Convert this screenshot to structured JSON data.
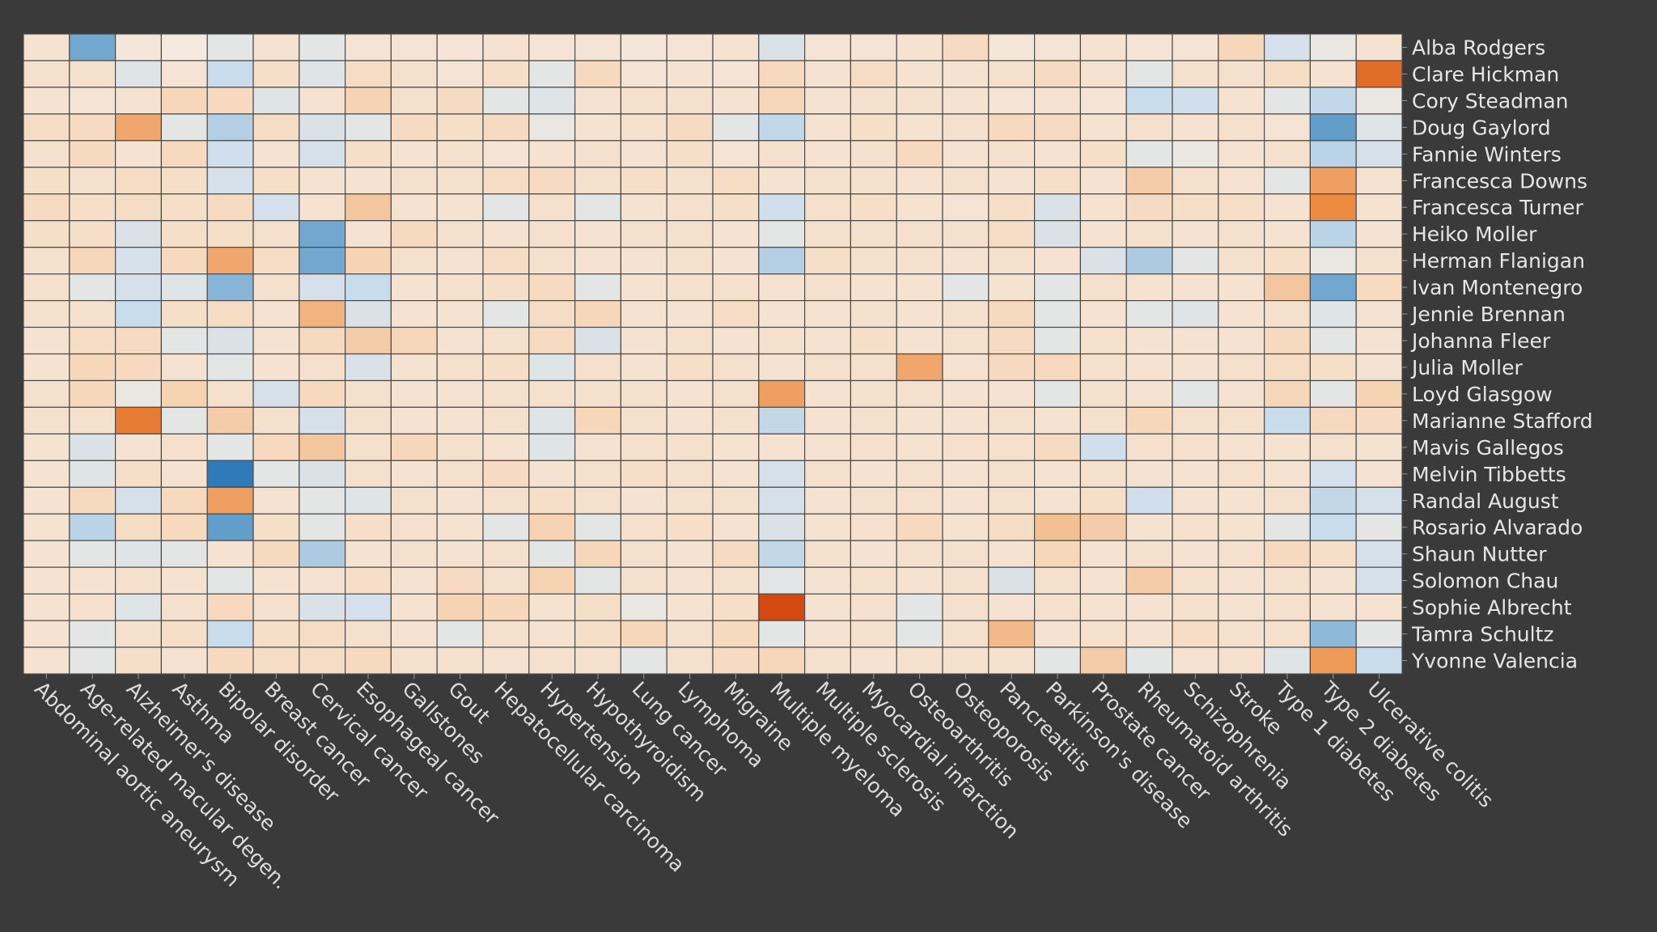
{
  "chart_data": {
    "type": "heatmap",
    "title": "",
    "xlabel": "",
    "ylabel": "",
    "x_categories": [
      "Abdominal aortic aneurysm",
      "Age-related macular degen.",
      "Alzheimer's disease",
      "Asthma",
      "Bipolar disorder",
      "Breast cancer",
      "Cervical cancer",
      "Esophageal cancer",
      "Gallstones",
      "Gout",
      "Hepatocellular carcinoma",
      "Hypertension",
      "Hypothyroidism",
      "Lung cancer",
      "Lymphoma",
      "Migraine",
      "Multiple myeloma",
      "Multiple sclerosis",
      "Myocardial infarction",
      "Osteoarthritis",
      "Osteoporosis",
      "Pancreatitis",
      "Parkinson's disease",
      "Prostate cancer",
      "Rheumatoid arthritis",
      "Schizophrenia",
      "Stroke",
      "Type 1 diabetes",
      "Type 2 diabetes",
      "Ulcerative colitis"
    ],
    "y_categories": [
      "Alba Rodgers",
      "Clare Hickman",
      "Cory Steadman",
      "Doug Gaylord",
      "Fannie Winters",
      "Francesca Downs",
      "Francesca Turner",
      "Heiko Moller",
      "Herman Flanigan",
      "Ivan Montenegro",
      "Jennie Brennan",
      "Johanna Fleer",
      "Julia Moller",
      "Loyd Glasgow",
      "Marianne Stafford",
      "Mavis Gallegos",
      "Melvin Tibbetts",
      "Randal August",
      "Rosario Alvarado",
      "Shaun Nutter",
      "Solomon Chau",
      "Sophie Albrecht",
      "Tamra Schultz",
      "Yvonne Valencia"
    ],
    "value_scale": "diverging: -3 = strong blue, 0 = neutral pale, +3 = strong orange",
    "vlim": [
      -3,
      3
    ],
    "values": [
      [
        0.4,
        -2,
        0.2,
        0,
        -0.3,
        0.4,
        -0.3,
        0.3,
        0.3,
        0.3,
        0.4,
        0.3,
        0.3,
        0.2,
        0.3,
        0.4,
        -0.5,
        0.3,
        0.3,
        0.4,
        0.8,
        0.2,
        0.3,
        0.4,
        0.3,
        0.3,
        1.0,
        -0.6,
        -0.2,
        0.4
      ],
      [
        0.5,
        0.5,
        -0.4,
        0.3,
        -0.8,
        0.6,
        -0.4,
        0.7,
        0.5,
        0.3,
        0.6,
        -0.3,
        0.9,
        0.3,
        0.4,
        0.3,
        0.9,
        0.4,
        0.7,
        0.4,
        0.4,
        0.5,
        0.8,
        0.4,
        -0.3,
        0.5,
        0.5,
        0.7,
        0.4,
        2.6
      ],
      [
        0.4,
        0.3,
        0.4,
        1,
        0.9,
        -0.4,
        0.4,
        1.1,
        0.5,
        0.8,
        -0.3,
        -0.4,
        0.4,
        0.5,
        0.5,
        0.4,
        1.0,
        0.4,
        0.5,
        0.5,
        0.4,
        0.3,
        0.4,
        0.3,
        -0.8,
        -0.7,
        0.4,
        -0.3,
        -0.9,
        -0.2
      ],
      [
        0.7,
        0.8,
        1.8,
        -0.3,
        -1.1,
        0.7,
        -0.5,
        -0.3,
        0.8,
        0.6,
        0.8,
        -0.2,
        0.4,
        0.5,
        0.8,
        -0.3,
        -0.9,
        0.4,
        0.6,
        0.4,
        0.5,
        0.9,
        0.8,
        0.4,
        0.5,
        0.4,
        0.5,
        0.3,
        -2.2,
        -0.4
      ],
      [
        0.5,
        0.9,
        0.4,
        0.9,
        -0.7,
        0.4,
        -0.6,
        0.6,
        0.4,
        0.5,
        0.3,
        0.4,
        0.5,
        0.4,
        0.6,
        0.3,
        0.5,
        0.4,
        0.5,
        0.9,
        0.4,
        0.5,
        0.4,
        0.6,
        -0.3,
        -0.2,
        0.4,
        0.5,
        -1.0,
        -0.6
      ],
      [
        0.6,
        0.5,
        0.7,
        0.6,
        -0.6,
        0.6,
        0.4,
        0.4,
        0.5,
        0.5,
        0.7,
        0.8,
        0.5,
        0.6,
        0.5,
        0.7,
        0.4,
        0.5,
        0.5,
        0.4,
        0.5,
        0.4,
        0.6,
        0.4,
        1.2,
        0.5,
        0.4,
        -0.3,
        1.9,
        0.4
      ],
      [
        0.8,
        0.6,
        0.7,
        0.6,
        0.8,
        -0.6,
        0.4,
        1.3,
        0.4,
        0.4,
        -0.3,
        0.5,
        -0.3,
        0.4,
        0.5,
        0.6,
        -0.7,
        0.5,
        0.6,
        0.4,
        0.3,
        0.6,
        -0.5,
        0.4,
        0.8,
        0.6,
        0.6,
        0.4,
        2.2,
        0.4
      ],
      [
        0.6,
        0.6,
        -0.5,
        0.6,
        0.6,
        0.5,
        -2.0,
        0.4,
        0.9,
        0.5,
        0.4,
        0.5,
        0.4,
        0.5,
        0.5,
        0.4,
        -0.3,
        0.5,
        0.5,
        0.5,
        0.5,
        0.7,
        -0.5,
        0.4,
        0.5,
        0.4,
        0.5,
        0.4,
        -1.0,
        0.4
      ],
      [
        0.5,
        1.0,
        -0.6,
        0.9,
        1.8,
        0.7,
        -2.0,
        1.1,
        0.5,
        0.4,
        0.7,
        0.5,
        0.4,
        0.4,
        0.5,
        0.4,
        -1.1,
        0.6,
        0.5,
        0.5,
        0.4,
        0.5,
        0.4,
        -0.5,
        -1.2,
        -0.3,
        0.5,
        0.6,
        -0.2,
        0.5
      ],
      [
        0.5,
        -0.3,
        -0.6,
        -0.4,
        -1.7,
        0.5,
        -0.6,
        -0.8,
        0.4,
        0.5,
        0.6,
        0.8,
        -0.3,
        0.4,
        0.5,
        0.5,
        0.4,
        0.5,
        0.4,
        0.4,
        -0.3,
        0.4,
        -0.3,
        0.5,
        0.4,
        0.4,
        0.4,
        1.3,
        -2.0,
        0.8
      ],
      [
        0.5,
        0.5,
        -0.8,
        0.6,
        0.7,
        0.4,
        1.6,
        -0.5,
        0.4,
        0.4,
        -0.3,
        0.7,
        1.0,
        0.4,
        0.4,
        0.7,
        0.4,
        0.4,
        0.5,
        0.4,
        0.5,
        0.9,
        -0.3,
        0.4,
        -0.3,
        -0.4,
        0.4,
        0.5,
        -0.4,
        0.4
      ],
      [
        0.4,
        0.7,
        0.8,
        -0.3,
        -0.5,
        0.4,
        0.9,
        1.2,
        1.0,
        0.4,
        0.5,
        0.8,
        -0.5,
        0.4,
        0.5,
        0.4,
        0.5,
        0.4,
        0.6,
        0.4,
        0.5,
        0.8,
        -0.3,
        0.5,
        0.4,
        0.4,
        0.4,
        0.9,
        -0.3,
        0.4
      ],
      [
        0.4,
        1.0,
        0.9,
        0.4,
        -0.3,
        0.4,
        0.5,
        -0.5,
        0.4,
        0.5,
        0.6,
        -0.4,
        0.5,
        0.4,
        0.6,
        0.5,
        0.4,
        0.5,
        0.5,
        1.8,
        0.4,
        0.9,
        0.9,
        0.5,
        0.4,
        0.4,
        0.5,
        0.7,
        0.6,
        0.4
      ],
      [
        0.5,
        1.0,
        -0.2,
        1.1,
        0.5,
        -0.6,
        0.9,
        0.5,
        0.4,
        0.4,
        0.5,
        0.5,
        0.5,
        0.5,
        0.4,
        0.5,
        1.9,
        0.4,
        0.5,
        0.5,
        0.4,
        0.4,
        -0.3,
        0.5,
        0.4,
        -0.3,
        0.4,
        1.0,
        -0.3,
        1.1
      ],
      [
        0.5,
        0.5,
        2.4,
        -0.3,
        1.2,
        0.5,
        -0.6,
        0.5,
        0.4,
        0.4,
        0.5,
        -0.4,
        1.0,
        0.5,
        0.4,
        0.5,
        -0.9,
        0.4,
        0.5,
        0.4,
        0.4,
        0.5,
        0.4,
        0.5,
        1.0,
        0.5,
        0.5,
        -0.8,
        0.9,
        0.8
      ],
      [
        0.4,
        -0.5,
        0.4,
        0.5,
        -0.3,
        0.9,
        1.3,
        0.5,
        1.0,
        0.5,
        0.4,
        -0.4,
        0.4,
        0.5,
        0.5,
        0.4,
        0.4,
        0.4,
        0.5,
        0.4,
        0.5,
        0.5,
        0.8,
        -0.7,
        0.5,
        0.5,
        0.4,
        0.4,
        0.5,
        0.4
      ],
      [
        0.4,
        -0.4,
        0.6,
        0.4,
        -2.8,
        -0.3,
        -0.5,
        0.5,
        0.4,
        0.5,
        0.8,
        0.4,
        0.5,
        0.6,
        0.5,
        0.4,
        -0.6,
        0.5,
        0.4,
        0.5,
        0.4,
        0.5,
        0.4,
        0.5,
        0.4,
        0.4,
        0.5,
        0.4,
        -0.6,
        0.4
      ],
      [
        0.4,
        0.9,
        -0.6,
        0.9,
        1.9,
        0.4,
        -0.3,
        -0.4,
        0.5,
        0.4,
        0.5,
        0.6,
        0.5,
        0.4,
        0.5,
        0.5,
        -0.6,
        0.4,
        0.5,
        0.5,
        0.4,
        0.5,
        0.4,
        0.6,
        -0.7,
        0.4,
        0.4,
        0.5,
        -0.9,
        -0.6
      ],
      [
        0.4,
        -1.0,
        0.7,
        0.9,
        -2.2,
        0.6,
        -0.3,
        0.6,
        0.5,
        0.4,
        -0.3,
        1.1,
        -0.3,
        0.5,
        0.6,
        0.4,
        -0.5,
        0.4,
        0.5,
        0.9,
        0.4,
        0.7,
        1.4,
        1.2,
        0.4,
        0.5,
        0.4,
        -0.3,
        -0.8,
        -0.3
      ],
      [
        0.4,
        -0.3,
        -0.4,
        -0.3,
        0.4,
        0.9,
        -1.2,
        0.4,
        0.5,
        0.4,
        0.5,
        -0.3,
        1.0,
        0.5,
        0.4,
        0.8,
        -0.9,
        0.5,
        0.4,
        0.5,
        0.5,
        0.4,
        1.0,
        0.4,
        0.5,
        0.4,
        0.5,
        0.9,
        0.6,
        -0.6
      ],
      [
        0.4,
        0.4,
        0.5,
        0.4,
        -0.3,
        0.4,
        0.4,
        0.6,
        0.4,
        0.8,
        0.5,
        1.1,
        -0.3,
        0.5,
        0.4,
        0.5,
        -0.3,
        0.4,
        0.5,
        0.4,
        0.5,
        -0.5,
        0.5,
        0.4,
        1.2,
        0.5,
        0.4,
        0.5,
        0.4,
        -0.6
      ],
      [
        0.4,
        0.5,
        -0.4,
        0.5,
        0.9,
        0.5,
        -0.5,
        -0.6,
        0.4,
        1.1,
        1.0,
        0.4,
        0.6,
        -0.2,
        0.4,
        0.6,
        3.0,
        0.4,
        0.5,
        -0.3,
        0.5,
        0.4,
        0.5,
        0.4,
        0.4,
        0.5,
        0.4,
        0.5,
        0.4,
        0.4
      ],
      [
        0.4,
        -0.3,
        0.5,
        0.6,
        -0.8,
        0.6,
        0.7,
        0.5,
        0.4,
        -0.3,
        0.5,
        0.4,
        0.6,
        1.0,
        0.5,
        0.9,
        -0.3,
        0.4,
        0.5,
        -0.3,
        0.5,
        1.5,
        0.4,
        0.5,
        0.4,
        0.7,
        0.5,
        0.5,
        -1.6,
        -0.3
      ],
      [
        0.4,
        -0.3,
        0.6,
        0.4,
        0.9,
        0.7,
        0.7,
        0.9,
        0.5,
        0.5,
        0.4,
        0.5,
        0.5,
        -0.3,
        0.5,
        0.8,
        1.0,
        0.5,
        0.4,
        0.5,
        0.5,
        0.5,
        -0.3,
        1.2,
        -0.3,
        0.4,
        0.5,
        -0.4,
        2.0,
        -0.8
      ]
    ],
    "legend": ""
  }
}
